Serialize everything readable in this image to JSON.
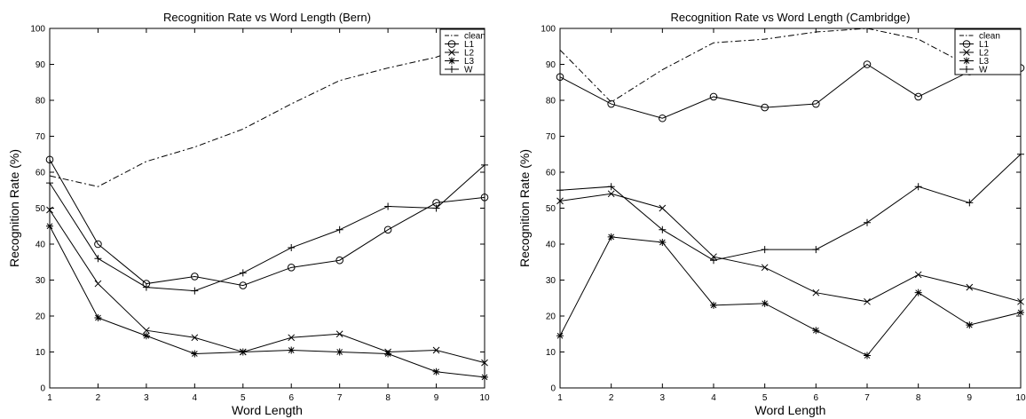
{
  "chart_data": [
    {
      "type": "line",
      "title": "Recognition Rate vs Word Length (Bern)",
      "xlabel": "Word Length",
      "ylabel": "Recognition Rate (%)",
      "xlim": [
        1,
        10
      ],
      "ylim": [
        0,
        100
      ],
      "xticks": [
        1,
        2,
        3,
        4,
        5,
        6,
        7,
        8,
        9,
        10
      ],
      "yticks": [
        0,
        10,
        20,
        30,
        40,
        50,
        60,
        70,
        80,
        90,
        100
      ],
      "grid": false,
      "legend": "top-right",
      "x": [
        1,
        2,
        3,
        4,
        5,
        6,
        7,
        8,
        9,
        10
      ],
      "series": [
        {
          "name": "clean",
          "style": "dashdot",
          "marker": "none",
          "values": [
            59,
            56,
            63,
            67,
            72,
            79,
            85.5,
            89,
            92,
            97
          ]
        },
        {
          "name": "L1",
          "style": "solid",
          "marker": "circle",
          "values": [
            63.5,
            40,
            29,
            31,
            28.5,
            33.5,
            35.5,
            44,
            51.5,
            53
          ]
        },
        {
          "name": "L2",
          "style": "solid",
          "marker": "x",
          "values": [
            49.5,
            29,
            16,
            14,
            10,
            14,
            15,
            10,
            10.5,
            7
          ]
        },
        {
          "name": "L3",
          "style": "solid",
          "marker": "star",
          "values": [
            45,
            19.5,
            14.5,
            9.5,
            10,
            10.5,
            10,
            9.5,
            4.5,
            3
          ]
        },
        {
          "name": "W",
          "style": "solid",
          "marker": "plus",
          "values": [
            57,
            36,
            28,
            27,
            32,
            39,
            44,
            50.5,
            50,
            62
          ]
        }
      ]
    },
    {
      "type": "line",
      "title": "Recognition Rate vs Word Length (Cambridge)",
      "xlabel": "Word Length",
      "ylabel": "Recognition Rate (%)",
      "xlim": [
        1,
        10
      ],
      "ylim": [
        0,
        100
      ],
      "xticks": [
        1,
        2,
        3,
        4,
        5,
        6,
        7,
        8,
        9,
        10
      ],
      "yticks": [
        0,
        10,
        20,
        30,
        40,
        50,
        60,
        70,
        80,
        90,
        100
      ],
      "grid": false,
      "legend": "top-right",
      "x": [
        1,
        2,
        3,
        4,
        5,
        6,
        7,
        8,
        9,
        10
      ],
      "series": [
        {
          "name": "clean",
          "style": "dashdot",
          "marker": "none",
          "values": [
            94,
            79.5,
            88.5,
            96,
            97,
            99,
            100,
            97,
            89.5,
            89
          ]
        },
        {
          "name": "L1",
          "style": "solid",
          "marker": "circle",
          "values": [
            86.5,
            79,
            75,
            81,
            78,
            79,
            90,
            81,
            88,
            89
          ]
        },
        {
          "name": "L2",
          "style": "solid",
          "marker": "x",
          "values": [
            52,
            54,
            50,
            36.5,
            33.5,
            26.5,
            24,
            31.5,
            28,
            24
          ]
        },
        {
          "name": "L3",
          "style": "solid",
          "marker": "star",
          "values": [
            14.5,
            42,
            40.5,
            23,
            23.5,
            16,
            9,
            26.5,
            17.5,
            21
          ]
        },
        {
          "name": "W",
          "style": "solid",
          "marker": "plus",
          "values": [
            55,
            56,
            44,
            35.5,
            38.5,
            38.5,
            46,
            56,
            51.5,
            65
          ]
        }
      ]
    }
  ]
}
